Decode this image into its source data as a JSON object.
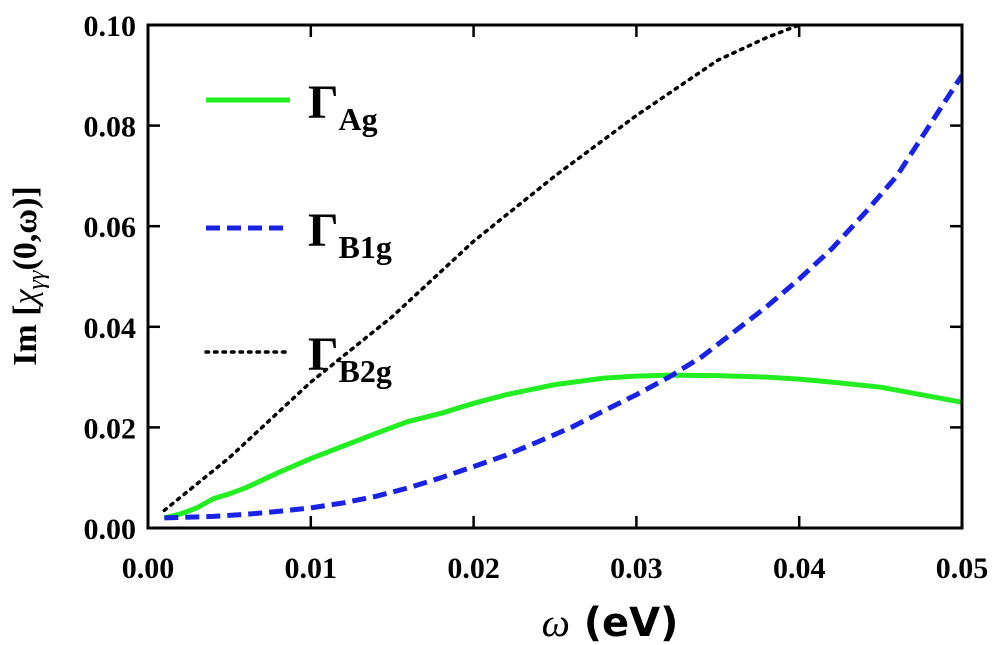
{
  "chart_data": {
    "type": "line",
    "title": "",
    "xlabel": {
      "symbol": "ω",
      "unit": " (eV)"
    },
    "ylabel": {
      "prefix": "Im [",
      "symbol": "χ",
      "subscript": "γγ",
      "suffix": "(0,ω)]"
    },
    "xlim": [
      0,
      0.05
    ],
    "ylim": [
      0,
      0.1
    ],
    "xticks": [
      0,
      0.01,
      0.02,
      0.03,
      0.04,
      0.05
    ],
    "xtick_labels": [
      "0.00",
      "0.01",
      "0.02",
      "0.03",
      "0.04",
      "0.05"
    ],
    "yticks": [
      0,
      0.02,
      0.04,
      0.06,
      0.08,
      0.1
    ],
    "ytick_labels": [
      "0.00",
      "0.02",
      "0.04",
      "0.06",
      "0.08",
      "0.10"
    ],
    "legend_position": "upper-left",
    "series": [
      {
        "name": "Γ_Ag",
        "label_main": "Γ",
        "label_sub": "Ag",
        "color": "#22ee22",
        "style": "solid",
        "x": [
          0.001,
          0.002,
          0.003,
          0.004,
          0.005,
          0.006,
          0.008,
          0.01,
          0.012,
          0.014,
          0.016,
          0.018,
          0.02,
          0.022,
          0.025,
          0.028,
          0.03,
          0.032,
          0.035,
          0.038,
          0.04,
          0.042,
          0.045,
          0.048,
          0.05
        ],
        "y": [
          0.002,
          0.0028,
          0.004,
          0.0058,
          0.0068,
          0.008,
          0.011,
          0.0138,
          0.0163,
          0.0188,
          0.0212,
          0.0228,
          0.0248,
          0.0265,
          0.0285,
          0.0298,
          0.0302,
          0.0304,
          0.0303,
          0.03,
          0.0296,
          0.029,
          0.028,
          0.0262,
          0.025
        ]
      },
      {
        "name": "Γ_B1g",
        "label_main": "Γ",
        "label_sub": "B1g",
        "color": "#1a22e6",
        "style": "dashed",
        "x": [
          0.001,
          0.004,
          0.006,
          0.008,
          0.01,
          0.012,
          0.014,
          0.016,
          0.018,
          0.02,
          0.022,
          0.024,
          0.026,
          0.028,
          0.03,
          0.032,
          0.034,
          0.036,
          0.038,
          0.04,
          0.042,
          0.044,
          0.046,
          0.048,
          0.05
        ],
        "y": [
          0.002,
          0.0023,
          0.0027,
          0.0033,
          0.004,
          0.005,
          0.0063,
          0.008,
          0.01,
          0.0122,
          0.0145,
          0.0172,
          0.02,
          0.0233,
          0.0265,
          0.03,
          0.034,
          0.039,
          0.044,
          0.0495,
          0.0555,
          0.0625,
          0.07,
          0.08,
          0.09
        ]
      },
      {
        "name": "Γ_B2g",
        "label_main": "Γ",
        "label_sub": "B2g",
        "color": "#000000",
        "style": "dotted",
        "x": [
          0.001,
          0.005,
          0.01,
          0.015,
          0.02,
          0.025,
          0.03,
          0.035,
          0.038,
          0.04
        ],
        "y": [
          0.0035,
          0.014,
          0.029,
          0.042,
          0.057,
          0.07,
          0.082,
          0.093,
          0.0975,
          0.1
        ]
      }
    ]
  }
}
